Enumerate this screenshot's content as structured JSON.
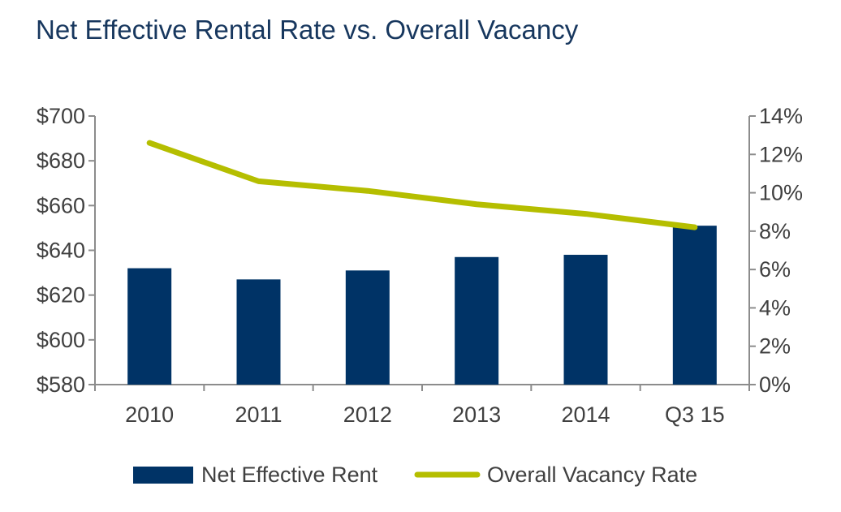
{
  "chart_data": {
    "type": "bar",
    "title": "Net Effective Rental Rate vs. Overall Vacancy",
    "categories": [
      "2010",
      "2011",
      "2012",
      "2013",
      "2014",
      "Q3 15"
    ],
    "series": [
      {
        "name": "Net Effective Rent",
        "type": "bar",
        "axis": "left",
        "color": "#003366",
        "values": [
          632,
          627,
          631,
          637,
          638,
          651
        ]
      },
      {
        "name": "Overall Vacancy Rate",
        "type": "line",
        "axis": "right",
        "color": "#b5be00",
        "values": [
          12.6,
          10.6,
          10.1,
          9.4,
          8.9,
          8.2
        ]
      }
    ],
    "y_left": {
      "ylim": [
        580,
        700
      ],
      "ticks": [
        700,
        680,
        660,
        640,
        620,
        600,
        580
      ],
      "tick_labels": [
        "$700",
        "$680",
        "$660",
        "$640",
        "$620",
        "$600",
        "$580"
      ]
    },
    "y_right": {
      "ylim": [
        0,
        14
      ],
      "ticks": [
        14,
        12,
        10,
        8,
        6,
        4,
        2,
        0
      ],
      "tick_labels": [
        "14%",
        "12%",
        "10%",
        "8%",
        "6%",
        "4%",
        "2%",
        "0%"
      ]
    },
    "xlabel": "",
    "grid": false,
    "legend_position": "bottom"
  }
}
